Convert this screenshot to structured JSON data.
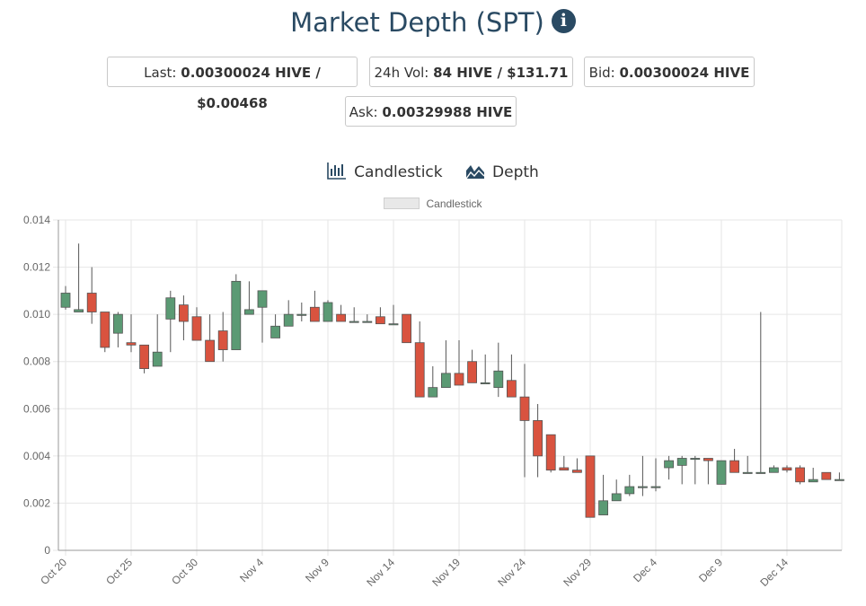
{
  "header": {
    "title": "Market Depth (SPT)",
    "info_icon": "info-icon"
  },
  "stats": {
    "last_label": "Last:",
    "last_value": "0.00300024 HIVE / $0.00468",
    "vol_label": "24h Vol:",
    "vol_value": "84 HIVE / $131.71",
    "bid_label": "Bid:",
    "bid_value": "0.00300024 HIVE",
    "ask_label": "Ask:",
    "ask_value": "0.00329988 HIVE"
  },
  "tabs": [
    {
      "label": "Candlestick",
      "icon": "candlestick-chart-icon"
    },
    {
      "label": "Depth",
      "icon": "depth-chart-icon"
    }
  ],
  "legend": {
    "label": "Candlestick"
  },
  "colors": {
    "up": "#5b9a74",
    "down": "#d9533f",
    "title": "#2a4a63",
    "grid": "#e6e6e6"
  },
  "chart_data": {
    "type": "candlestick",
    "legend": [
      "Candlestick"
    ],
    "ylim": [
      0,
      0.014
    ],
    "y_ticks": [
      "0",
      "0.002",
      "0.004",
      "0.006",
      "0.008",
      "0.010",
      "0.012",
      "0.014"
    ],
    "x_ticks": [
      "Oct 20",
      "Oct 25",
      "Oct 30",
      "Nov 4",
      "Nov 9",
      "Nov 14",
      "Nov 19",
      "Nov 24",
      "Nov 29",
      "Dec 4",
      "Dec 9",
      "Dec 14"
    ],
    "grid": true,
    "candles": [
      {
        "date": "Oct 20",
        "open": 0.0103,
        "high": 0.0112,
        "low": 0.0102,
        "close": 0.0109
      },
      {
        "date": "Oct 21",
        "open": 0.0101,
        "high": 0.013,
        "low": 0.0101,
        "close": 0.0102
      },
      {
        "date": "Oct 22",
        "open": 0.0109,
        "high": 0.012,
        "low": 0.0096,
        "close": 0.0101
      },
      {
        "date": "Oct 23",
        "open": 0.0101,
        "high": 0.0101,
        "low": 0.0084,
        "close": 0.0086
      },
      {
        "date": "Oct 24",
        "open": 0.0092,
        "high": 0.0101,
        "low": 0.0086,
        "close": 0.01
      },
      {
        "date": "Oct 25",
        "open": 0.0088,
        "high": 0.01,
        "low": 0.0084,
        "close": 0.0087
      },
      {
        "date": "Oct 26",
        "open": 0.0087,
        "high": 0.0087,
        "low": 0.0075,
        "close": 0.0077
      },
      {
        "date": "Oct 27",
        "open": 0.0078,
        "high": 0.01,
        "low": 0.0078,
        "close": 0.0084
      },
      {
        "date": "Oct 28",
        "open": 0.0098,
        "high": 0.011,
        "low": 0.0084,
        "close": 0.0107
      },
      {
        "date": "Oct 29",
        "open": 0.0104,
        "high": 0.0108,
        "low": 0.0089,
        "close": 0.0097
      },
      {
        "date": "Oct 30",
        "open": 0.0099,
        "high": 0.0103,
        "low": 0.0089,
        "close": 0.0089
      },
      {
        "date": "Oct 31",
        "open": 0.0089,
        "high": 0.01,
        "low": 0.008,
        "close": 0.008
      },
      {
        "date": "Nov 1",
        "open": 0.0093,
        "high": 0.0101,
        "low": 0.008,
        "close": 0.0085
      },
      {
        "date": "Nov 2",
        "open": 0.0085,
        "high": 0.0117,
        "low": 0.0085,
        "close": 0.0114
      },
      {
        "date": "Nov 3",
        "open": 0.01,
        "high": 0.0114,
        "low": 0.01,
        "close": 0.0102
      },
      {
        "date": "Nov 4",
        "open": 0.0103,
        "high": 0.011,
        "low": 0.0088,
        "close": 0.011
      },
      {
        "date": "Nov 5",
        "open": 0.009,
        "high": 0.01,
        "low": 0.009,
        "close": 0.0095
      },
      {
        "date": "Nov 6",
        "open": 0.0095,
        "high": 0.0106,
        "low": 0.0095,
        "close": 0.01
      },
      {
        "date": "Nov 7",
        "open": 0.01,
        "high": 0.0105,
        "low": 0.0097,
        "close": 0.01
      },
      {
        "date": "Nov 8",
        "open": 0.0103,
        "high": 0.011,
        "low": 0.0097,
        "close": 0.0097
      },
      {
        "date": "Nov 9",
        "open": 0.0097,
        "high": 0.0106,
        "low": 0.0097,
        "close": 0.0105
      },
      {
        "date": "Nov 10",
        "open": 0.01,
        "high": 0.0104,
        "low": 0.0097,
        "close": 0.0097
      },
      {
        "date": "Nov 11",
        "open": 0.0097,
        "high": 0.0103,
        "low": 0.0097,
        "close": 0.0097
      },
      {
        "date": "Nov 12",
        "open": 0.0097,
        "high": 0.01,
        "low": 0.0097,
        "close": 0.0097
      },
      {
        "date": "Nov 13",
        "open": 0.0099,
        "high": 0.0103,
        "low": 0.0096,
        "close": 0.0096
      },
      {
        "date": "Nov 14",
        "open": 0.0096,
        "high": 0.0104,
        "low": 0.0096,
        "close": 0.0096
      },
      {
        "date": "Nov 15",
        "open": 0.01,
        "high": 0.01,
        "low": 0.0088,
        "close": 0.0088
      },
      {
        "date": "Nov 16",
        "open": 0.0088,
        "high": 0.0097,
        "low": 0.0065,
        "close": 0.0065
      },
      {
        "date": "Nov 17",
        "open": 0.0065,
        "high": 0.0078,
        "low": 0.0065,
        "close": 0.0069
      },
      {
        "date": "Nov 18",
        "open": 0.0069,
        "high": 0.0089,
        "low": 0.0069,
        "close": 0.0075
      },
      {
        "date": "Nov 19",
        "open": 0.0075,
        "high": 0.0089,
        "low": 0.007,
        "close": 0.007
      },
      {
        "date": "Nov 20",
        "open": 0.008,
        "high": 0.0085,
        "low": 0.0071,
        "close": 0.0071
      },
      {
        "date": "Nov 21",
        "open": 0.0071,
        "high": 0.0083,
        "low": 0.0071,
        "close": 0.0071
      },
      {
        "date": "Nov 22",
        "open": 0.0069,
        "high": 0.0088,
        "low": 0.0065,
        "close": 0.0076
      },
      {
        "date": "Nov 23",
        "open": 0.0072,
        "high": 0.0083,
        "low": 0.0065,
        "close": 0.0065
      },
      {
        "date": "Nov 24",
        "open": 0.0065,
        "high": 0.0079,
        "low": 0.0031,
        "close": 0.0055
      },
      {
        "date": "Nov 25",
        "open": 0.0055,
        "high": 0.0062,
        "low": 0.0031,
        "close": 0.004
      },
      {
        "date": "Nov 26",
        "open": 0.0049,
        "high": 0.0049,
        "low": 0.0033,
        "close": 0.0034
      },
      {
        "date": "Nov 27",
        "open": 0.0035,
        "high": 0.004,
        "low": 0.0034,
        "close": 0.0034
      },
      {
        "date": "Nov 28",
        "open": 0.0034,
        "high": 0.0039,
        "low": 0.0033,
        "close": 0.0033
      },
      {
        "date": "Nov 29",
        "open": 0.004,
        "high": 0.004,
        "low": 0.0014,
        "close": 0.0014
      },
      {
        "date": "Nov 30",
        "open": 0.0015,
        "high": 0.0032,
        "low": 0.0015,
        "close": 0.0021
      },
      {
        "date": "Dec 1",
        "open": 0.0021,
        "high": 0.003,
        "low": 0.0021,
        "close": 0.0024
      },
      {
        "date": "Dec 2",
        "open": 0.0024,
        "high": 0.0032,
        "low": 0.0023,
        "close": 0.0027
      },
      {
        "date": "Dec 3",
        "open": 0.0027,
        "high": 0.004,
        "low": 0.0023,
        "close": 0.0027
      },
      {
        "date": "Dec 4",
        "open": 0.0027,
        "high": 0.0039,
        "low": 0.0025,
        "close": 0.0027
      },
      {
        "date": "Dec 5",
        "open": 0.0035,
        "high": 0.004,
        "low": 0.003,
        "close": 0.0038
      },
      {
        "date": "Dec 6",
        "open": 0.0036,
        "high": 0.004,
        "low": 0.0028,
        "close": 0.0039
      },
      {
        "date": "Dec 7",
        "open": 0.0039,
        "high": 0.004,
        "low": 0.0028,
        "close": 0.0039
      },
      {
        "date": "Dec 8",
        "open": 0.0039,
        "high": 0.0039,
        "low": 0.0028,
        "close": 0.0038
      },
      {
        "date": "Dec 9",
        "open": 0.0028,
        "high": 0.0038,
        "low": 0.0028,
        "close": 0.0038
      },
      {
        "date": "Dec 10",
        "open": 0.0038,
        "high": 0.0043,
        "low": 0.0033,
        "close": 0.0033
      },
      {
        "date": "Dec 11",
        "open": 0.0033,
        "high": 0.004,
        "low": 0.0033,
        "close": 0.0033
      },
      {
        "date": "Dec 12",
        "open": 0.0033,
        "high": 0.0101,
        "low": 0.0033,
        "close": 0.0033
      },
      {
        "date": "Dec 13",
        "open": 0.0033,
        "high": 0.0036,
        "low": 0.0033,
        "close": 0.0035
      },
      {
        "date": "Dec 14",
        "open": 0.0035,
        "high": 0.0036,
        "low": 0.0033,
        "close": 0.0034
      },
      {
        "date": "Dec 15",
        "open": 0.0035,
        "high": 0.0036,
        "low": 0.0028,
        "close": 0.0029
      },
      {
        "date": "Dec 16",
        "open": 0.0029,
        "high": 0.0035,
        "low": 0.0029,
        "close": 0.003
      },
      {
        "date": "Dec 17",
        "open": 0.0033,
        "high": 0.0033,
        "low": 0.003,
        "close": 0.003
      },
      {
        "date": "Dec 18",
        "open": 0.003,
        "high": 0.0033,
        "low": 0.003,
        "close": 0.003
      }
    ]
  }
}
